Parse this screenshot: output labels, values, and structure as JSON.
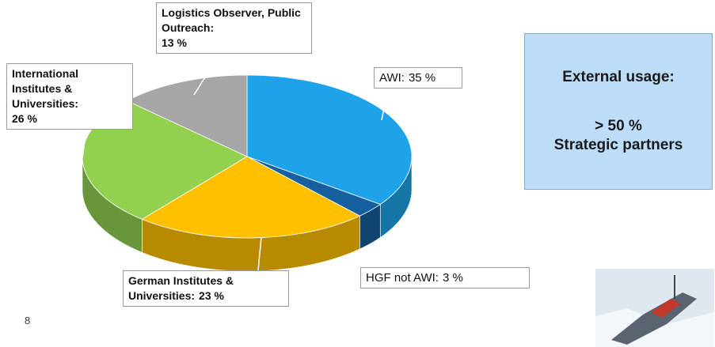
{
  "chart_data": {
    "type": "pie",
    "categories": [
      "AWI:",
      "HGF not AWI:",
      "German Institutes & Universities:",
      "International Institutes & Universities:",
      "Logistics Observer, Public Outreach:"
    ],
    "values": [
      35,
      3,
      23,
      26,
      13
    ],
    "value_labels": [
      "35 %",
      "3 %",
      "23 %",
      "26 %",
      "13 %"
    ],
    "colors": [
      "#1fa3e8",
      "#16609f",
      "#ffc000",
      "#92d050",
      "#a6a6a6"
    ]
  },
  "callout": {
    "title": "External usage:",
    "lines": [
      "> 50 %",
      "Strategic partners"
    ]
  },
  "page_number": "8"
}
